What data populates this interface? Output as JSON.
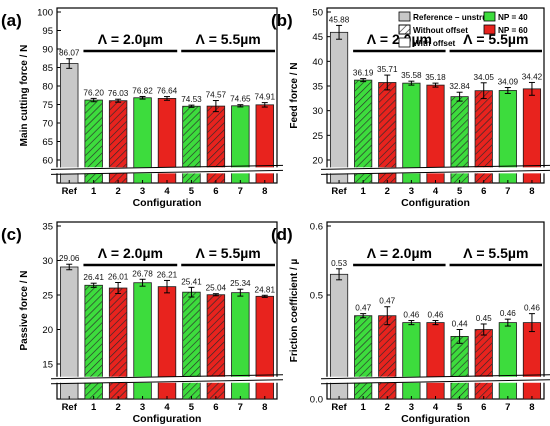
{
  "colors": {
    "reference": "#c8c8c8",
    "np40": "#3ddc3d",
    "np60": "#e8231e",
    "hatch": "#2a2a2a",
    "bar_outline": "#1a1a1a"
  },
  "legend": {
    "items": [
      {
        "label": "Reference – unstruc.",
        "swatch": "reference"
      },
      {
        "label": "Without offset",
        "swatch": "hatched"
      },
      {
        "label": "With offset",
        "swatch": "plain"
      },
      {
        "label": "NP = 40",
        "swatch": "np40"
      },
      {
        "label": "NP = 60",
        "swatch": "np60"
      }
    ]
  },
  "chart_data": [
    {
      "panel_label": "(a)",
      "type": "bar",
      "xlabel": "Configuration",
      "ylabel": "Main cutting force / N",
      "categories": [
        "Ref",
        "1",
        "2",
        "3",
        "4",
        "5",
        "6",
        "7",
        "8"
      ],
      "values": [
        86.07,
        76.2,
        76.03,
        76.82,
        76.64,
        74.53,
        74.57,
        74.65,
        74.91
      ],
      "value_labels": [
        "86.07",
        "76.20",
        "76.03",
        "76.82",
        "76.64",
        "74.53",
        "74.57",
        "74.65",
        "74.91"
      ],
      "errors": [
        1.3,
        0.45,
        0.4,
        0.35,
        0.5,
        0.3,
        1.5,
        0.3,
        0.6
      ],
      "ylim": [
        60,
        100
      ],
      "yticks": [
        60,
        65,
        70,
        75,
        80,
        85,
        90,
        95,
        100
      ],
      "ytick_labels": [
        "60",
        "65",
        "70",
        "75",
        "80",
        "85",
        "90",
        "95",
        "100"
      ],
      "y_break": true,
      "lambda_labels": [
        "Λ = 2.0µm",
        "Λ = 5.5µm"
      ]
    },
    {
      "panel_label": "(b)",
      "type": "bar",
      "xlabel": "Configuration",
      "ylabel": "Feed force / N",
      "categories": [
        "Ref",
        "1",
        "2",
        "3",
        "4",
        "5",
        "6",
        "7",
        "8"
      ],
      "values": [
        45.88,
        36.19,
        35.71,
        35.58,
        35.18,
        32.84,
        34.05,
        34.09,
        34.42
      ],
      "value_labels": [
        "45.88",
        "36.19",
        "35.71",
        "35.58",
        "35.18",
        "32.84",
        "34.05",
        "34.09",
        "34.42"
      ],
      "errors": [
        1.4,
        0.3,
        1.5,
        0.4,
        0.4,
        0.9,
        1.6,
        0.6,
        1.3
      ],
      "ylim": [
        20,
        50
      ],
      "yticks": [
        20,
        25,
        30,
        35,
        40,
        45,
        50
      ],
      "ytick_labels": [
        "20",
        "25",
        "30",
        "35",
        "40",
        "45",
        "50"
      ],
      "y_break": true,
      "lambda_labels": [
        "Λ = 2.0µm",
        "Λ = 5.5µm"
      ]
    },
    {
      "panel_label": "(c)",
      "type": "bar",
      "xlabel": "Configuration",
      "ylabel": "Passive force / N",
      "categories": [
        "Ref",
        "1",
        "2",
        "3",
        "4",
        "5",
        "6",
        "7",
        "8"
      ],
      "values": [
        29.06,
        26.41,
        26.01,
        26.78,
        26.21,
        25.41,
        25.04,
        25.34,
        24.81
      ],
      "value_labels": [
        "29.06",
        "26.41",
        "26.01",
        "26.78",
        "26.21",
        "25.41",
        "25.04",
        "25.34",
        "24.81"
      ],
      "errors": [
        0.4,
        0.3,
        0.8,
        0.5,
        0.9,
        0.7,
        0.15,
        0.5,
        0.15
      ],
      "ylim": [
        15,
        35
      ],
      "yticks": [
        15,
        20,
        25,
        30,
        35
      ],
      "ytick_labels": [
        "15",
        "20",
        "25",
        "30",
        "35"
      ],
      "y_break": true,
      "lambda_labels": [
        "Λ = 2.0µm",
        "Λ = 5.5µm"
      ]
    },
    {
      "panel_label": "(d)",
      "type": "bar",
      "xlabel": "Configuration",
      "ylabel": "Friction coefficient / µ",
      "categories": [
        "Ref",
        "1",
        "2",
        "3",
        "4",
        "5",
        "6",
        "7",
        "8"
      ],
      "values": [
        0.53,
        0.47,
        0.47,
        0.46,
        0.46,
        0.44,
        0.45,
        0.46,
        0.46
      ],
      "value_labels": [
        "0.53",
        "0.47",
        "0.47",
        "0.46",
        "0.46",
        "0.44",
        "0.45",
        "0.46",
        "0.46"
      ],
      "errors": [
        0.008,
        0.003,
        0.013,
        0.003,
        0.003,
        0.01,
        0.008,
        0.005,
        0.013
      ],
      "ylim": [
        0.4,
        0.6
      ],
      "yticks": [
        0.5,
        0.6
      ],
      "ytick_labels": [
        "0.5",
        "0.6"
      ],
      "y_break": true,
      "y_base_label": "0.0",
      "lambda_labels": [
        "Λ = 2.0µm",
        "Λ = 5.5µm"
      ]
    }
  ]
}
